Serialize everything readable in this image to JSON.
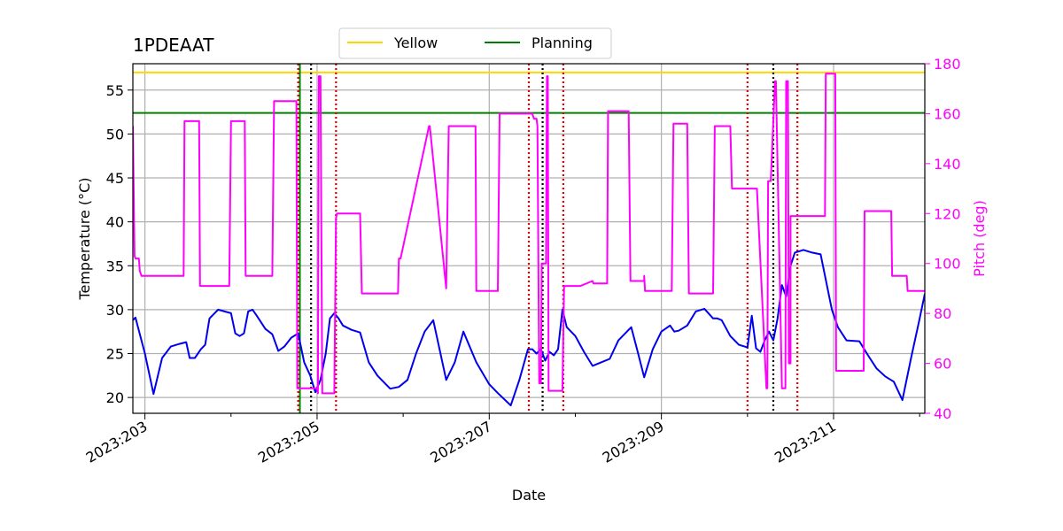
{
  "chart_data": {
    "type": "line",
    "title": "1PDEAAT",
    "xlabel": "Date",
    "ylabel_left": "Temperature ($^\\circ$C)",
    "ylabel_left_display": "Temperature (°C)",
    "ylabel_right": "Pitch (deg)",
    "xlim": [
      202.86,
      212.06
    ],
    "ylim_left": [
      18.2,
      58.0
    ],
    "ylim_right": [
      40,
      180
    ],
    "x_ticks": [
      {
        "value": 203,
        "label": "2023:203"
      },
      {
        "value": 205,
        "label": "2023:205"
      },
      {
        "value": 207,
        "label": "2023:207"
      },
      {
        "value": 209,
        "label": "2023:209"
      },
      {
        "value": 211,
        "label": "2023:211"
      }
    ],
    "x_minor_ticks": [
      204,
      206,
      208,
      210,
      212
    ],
    "y_ticks_left": [
      20,
      25,
      30,
      35,
      40,
      45,
      50,
      55
    ],
    "y_ticks_right": [
      40,
      60,
      80,
      100,
      120,
      140,
      160,
      180
    ],
    "grid": true,
    "colors": {
      "temperature": "#0000ee",
      "pitch": "#ff00ff",
      "yellow": "#ffd700",
      "planning": "#008000",
      "red_marker": "#dd0000",
      "black_marker": "#000000",
      "grid": "#b0b0b0"
    },
    "legend": {
      "placement": "top-center",
      "entries": [
        {
          "label": "Yellow",
          "color": "#ffd700"
        },
        {
          "label": "Planning",
          "color": "#008000"
        }
      ]
    },
    "limits": [
      {
        "name": "Yellow",
        "value": 57.0,
        "color": "#ffd700"
      },
      {
        "name": "Planning",
        "value": 52.4,
        "color": "#008000"
      }
    ],
    "planning_vertical_x": 204.8,
    "red_markers_x": [
      204.78,
      205.22,
      207.46,
      207.86,
      210.0,
      210.58
    ],
    "black_markers_x": [
      204.93,
      207.62,
      210.3
    ],
    "series": [
      {
        "name": "Temperature",
        "axis": "left",
        "color": "#0000ee",
        "x": [
          202.86,
          202.89,
          203.0,
          203.1,
          203.2,
          203.3,
          203.4,
          203.48,
          203.52,
          203.58,
          203.65,
          203.7,
          203.75,
          203.85,
          204.0,
          204.05,
          204.1,
          204.15,
          204.2,
          204.25,
          204.3,
          204.4,
          204.48,
          204.55,
          204.62,
          204.7,
          204.78,
          204.85,
          204.92,
          204.98,
          205.04,
          205.1,
          205.15,
          205.2,
          205.25,
          205.3,
          205.4,
          205.5,
          205.6,
          205.7,
          205.75,
          205.85,
          205.95,
          206.05,
          206.15,
          206.25,
          206.35,
          206.5,
          206.6,
          206.7,
          206.85,
          207.0,
          207.1,
          207.25,
          207.35,
          207.45,
          207.5,
          207.55,
          207.6,
          207.65,
          207.7,
          207.75,
          207.8,
          207.85,
          207.9,
          208.0,
          208.1,
          208.2,
          208.3,
          208.4,
          208.5,
          208.65,
          208.73,
          208.8,
          208.9,
          209.0,
          209.1,
          209.15,
          209.2,
          209.3,
          209.4,
          209.5,
          209.6,
          209.65,
          209.7,
          209.8,
          209.9,
          210.0,
          210.05,
          210.1,
          210.15,
          210.2,
          210.25,
          210.3,
          210.35,
          210.4,
          210.45,
          210.5,
          210.55,
          210.65,
          210.75,
          210.85,
          210.98,
          211.05,
          211.15,
          211.3,
          211.4,
          211.5,
          211.6,
          211.7,
          211.8,
          211.9,
          212.0,
          212.06
        ],
        "values": [
          28.8,
          29.1,
          25.0,
          20.4,
          24.5,
          25.8,
          26.1,
          26.3,
          24.5,
          24.5,
          25.5,
          26.0,
          29.0,
          30.0,
          29.6,
          27.3,
          27.0,
          27.3,
          29.8,
          30.0,
          29.3,
          27.8,
          27.2,
          25.3,
          25.8,
          26.8,
          27.3,
          24.0,
          22.5,
          20.6,
          22.0,
          25.0,
          29.0,
          29.6,
          29.0,
          28.2,
          27.7,
          27.4,
          24.0,
          22.5,
          22.0,
          21.0,
          21.2,
          22.0,
          25.0,
          27.5,
          28.8,
          22.0,
          24.0,
          27.5,
          24.0,
          21.5,
          20.5,
          19.1,
          22.0,
          25.5,
          25.5,
          25.0,
          25.5,
          24.2,
          25.2,
          24.8,
          25.5,
          30.0,
          28.0,
          27.0,
          25.2,
          23.6,
          24.0,
          24.4,
          26.5,
          28.0,
          25.0,
          22.3,
          25.5,
          27.5,
          28.2,
          27.5,
          27.6,
          28.2,
          29.8,
          30.1,
          29.0,
          29.0,
          28.8,
          27.0,
          26.0,
          25.7,
          29.3,
          25.6,
          25.2,
          26.5,
          27.5,
          26.5,
          29.0,
          32.8,
          31.5,
          35.0,
          36.5,
          36.8,
          36.5,
          36.3,
          30.0,
          28.0,
          26.5,
          26.4,
          24.8,
          23.3,
          22.4,
          21.8,
          19.7,
          24.5,
          29.0,
          31.8
        ]
      },
      {
        "name": "Pitch",
        "axis": "right",
        "color": "#ff00ff",
        "x": [
          202.86,
          202.88,
          202.89,
          202.93,
          202.94,
          202.96,
          202.98,
          203.45,
          203.46,
          203.5,
          203.63,
          203.64,
          203.98,
          204.0,
          204.16,
          204.17,
          204.48,
          204.5,
          204.76,
          204.77,
          205.0,
          205.01,
          205.02,
          205.04,
          205.06,
          205.07,
          205.1,
          205.15,
          205.16,
          205.17,
          205.2,
          205.22,
          205.23,
          205.5,
          205.52,
          205.86,
          205.88,
          205.94,
          205.95,
          205.97,
          206.3,
          206.31,
          206.5,
          206.53,
          206.84,
          206.85,
          207.1,
          207.12,
          207.5,
          207.52,
          207.55,
          207.56,
          207.58,
          207.6,
          207.61,
          207.66,
          207.67,
          207.68,
          207.69,
          207.73,
          207.85,
          207.87,
          208.05,
          208.06,
          208.2,
          208.21,
          208.35,
          208.37,
          208.38,
          208.62,
          208.64,
          208.8,
          208.8,
          208.81,
          208.83,
          209.12,
          209.14,
          209.3,
          209.32,
          209.6,
          209.62,
          209.8,
          209.82,
          210.1,
          210.11,
          210.22,
          210.23,
          210.23,
          210.24,
          210.26,
          210.27,
          210.32,
          210.33,
          210.4,
          210.41,
          210.44,
          210.45,
          210.47,
          210.48,
          210.5,
          210.5,
          210.53,
          210.54,
          210.9,
          210.91,
          211.02,
          211.03,
          211.35,
          211.36,
          211.67,
          211.68,
          211.85,
          211.86,
          212.06
        ],
        "values": [
          155,
          103,
          102,
          102,
          97,
          95,
          95,
          95,
          157,
          157,
          157,
          91,
          91,
          157,
          157,
          95,
          95,
          165,
          165,
          50,
          50,
          48,
          175,
          175,
          48,
          48,
          48,
          48,
          48,
          48,
          48,
          118,
          120,
          120,
          88,
          88,
          88,
          88,
          102,
          102,
          155,
          155,
          90,
          155,
          155,
          89,
          89,
          160,
          160,
          158,
          158,
          155,
          52,
          52,
          100,
          100,
          175,
          175,
          49,
          49,
          49,
          91,
          91,
          91,
          93,
          92,
          92,
          92,
          161,
          161,
          93,
          93,
          95,
          89,
          89,
          89,
          156,
          156,
          88,
          88,
          155,
          155,
          130,
          130,
          130,
          50,
          50,
          50,
          133,
          133,
          133,
          173,
          173,
          50,
          50,
          50,
          173,
          173,
          60,
          60,
          119,
          119,
          119,
          119,
          176,
          176,
          57,
          57,
          121,
          121,
          95,
          95,
          89,
          89
        ]
      }
    ]
  }
}
